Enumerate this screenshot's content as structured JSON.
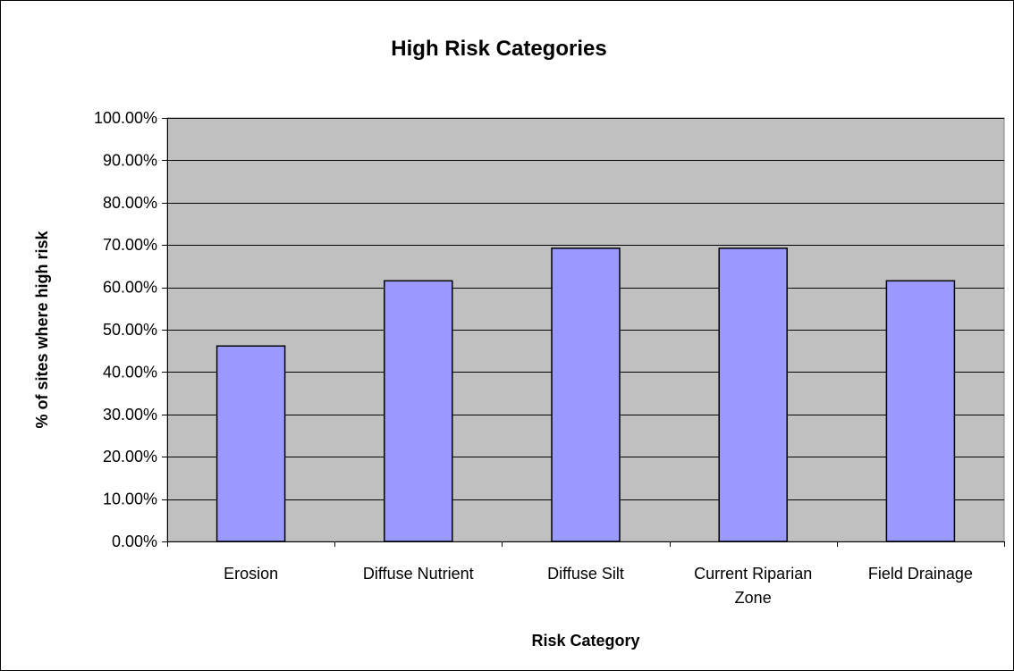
{
  "chart_data": {
    "type": "bar",
    "title": "High Risk Categories",
    "xlabel": "Risk Category",
    "ylabel": "% of sites where high risk",
    "categories": [
      "Erosion",
      "Diffuse Nutrient",
      "Diffuse Silt",
      "Current Riparian Zone",
      "Field Drainage"
    ],
    "category_labels": [
      [
        "Erosion"
      ],
      [
        "Diffuse Nutrient"
      ],
      [
        "Diffuse Silt"
      ],
      [
        "Current Riparian",
        "Zone"
      ],
      [
        "Field Drainage"
      ]
    ],
    "values": [
      46.15,
      61.54,
      69.23,
      69.23,
      61.54
    ],
    "ylim": [
      0,
      100
    ],
    "ytick_values": [
      0,
      10,
      20,
      30,
      40,
      50,
      60,
      70,
      80,
      90,
      100
    ],
    "ytick_labels": [
      "0.00%",
      "10.00%",
      "20.00%",
      "30.00%",
      "40.00%",
      "50.00%",
      "60.00%",
      "70.00%",
      "80.00%",
      "90.00%",
      "100.00%"
    ],
    "grid": true,
    "legend": "none",
    "colors": {
      "bar": "#9999ff",
      "plot_background": "#c0c0c0",
      "gridline": "#000000"
    }
  }
}
